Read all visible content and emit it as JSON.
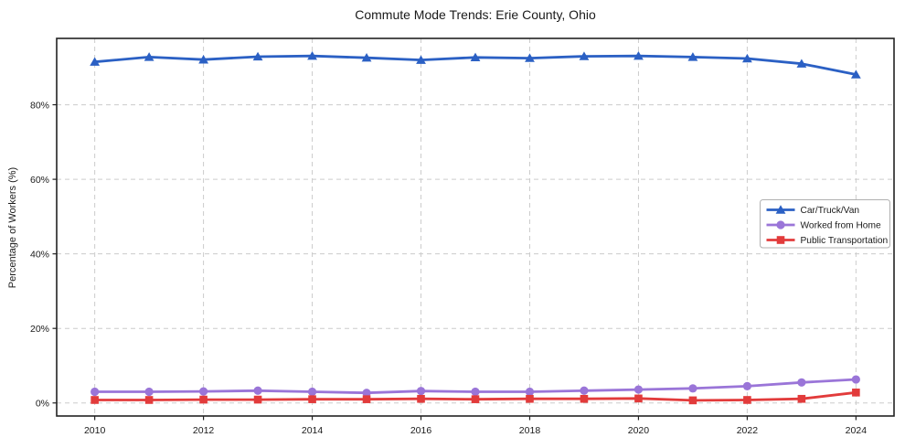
{
  "page": {
    "background": "#ffffff"
  },
  "chart_data": {
    "type": "line",
    "title": "Commute Mode Trends: Erie County, Ohio",
    "xlabel": "",
    "ylabel": "Percentage of Workers (%)",
    "x": [
      2010,
      2011,
      2012,
      2013,
      2014,
      2015,
      2016,
      2017,
      2018,
      2019,
      2020,
      2021,
      2022,
      2023,
      2024
    ],
    "series": [
      {
        "name": "Car/Truck/Van",
        "marker": "triangle",
        "color": "#2b60c4",
        "values": [
          91.5,
          92.8,
          92.1,
          92.9,
          93.1,
          92.6,
          92.0,
          92.7,
          92.5,
          93.0,
          93.1,
          92.8,
          92.4,
          91.0,
          88.1
        ]
      },
      {
        "name": "Worked from Home",
        "marker": "circle",
        "color": "#9a75d8",
        "values": [
          3.0,
          3.0,
          3.1,
          3.3,
          3.0,
          2.7,
          3.2,
          3.0,
          3.0,
          3.3,
          3.6,
          3.9,
          4.5,
          5.5,
          6.3
        ]
      },
      {
        "name": "Public Transportation",
        "marker": "square",
        "color": "#e23b3b",
        "values": [
          0.8,
          0.8,
          0.9,
          0.9,
          1.0,
          1.0,
          1.1,
          1.0,
          1.1,
          1.1,
          1.2,
          0.7,
          0.8,
          1.1,
          2.8
        ]
      }
    ],
    "x_ticks": {
      "values": [
        2010,
        2012,
        2014,
        2016,
        2018,
        2020,
        2022,
        2024
      ],
      "labels": [
        "2010",
        "2012",
        "2014",
        "2016",
        "2018",
        "2020",
        "2022",
        "2024"
      ]
    },
    "y_ticks": {
      "values": [
        0,
        20,
        40,
        60,
        80
      ],
      "labels": [
        "0%",
        "20%",
        "40%",
        "60%",
        "80%"
      ]
    },
    "xlim": [
      2009.3,
      2024.7
    ],
    "ylim": [
      -3.5,
      97.8
    ],
    "grid": {
      "show": true,
      "style": "dashed",
      "color": "#cccccc"
    },
    "legend": {
      "position": "center-right"
    },
    "colors": {
      "frame": "#222222",
      "text": "#1a1a1a",
      "grid": "#cccccc",
      "legend_border": "#b0b0b0",
      "background": "#ffffff"
    }
  }
}
